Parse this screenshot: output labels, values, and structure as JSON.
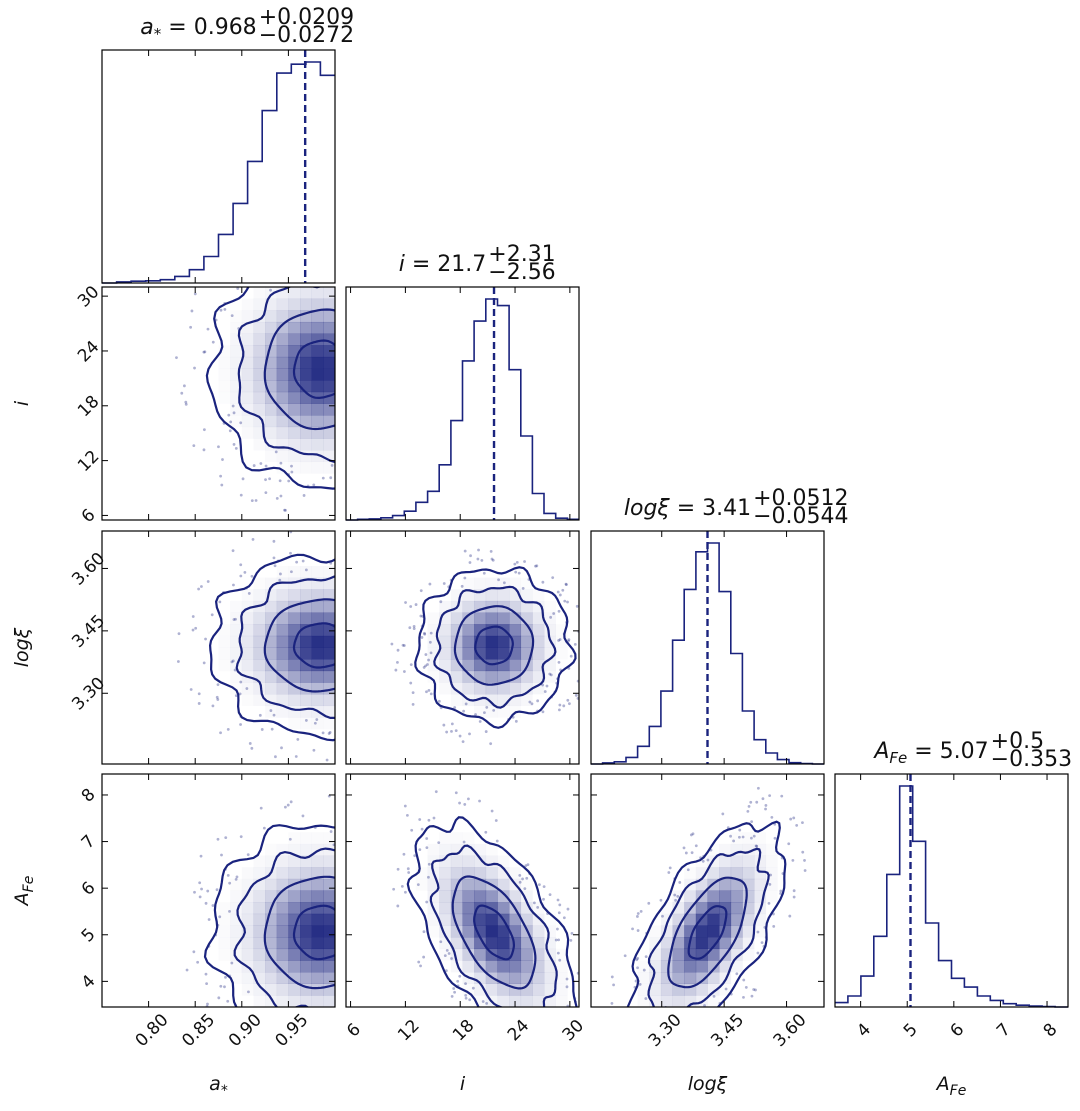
{
  "colors": {
    "line": "#1a237e",
    "density": "#1a237e",
    "frame": "#000000"
  },
  "chart_data": {
    "type": "corner",
    "parameters": [
      {
        "key": "a",
        "symbol": "a",
        "sub": "*",
        "xlabel": "a*",
        "ylabel": "",
        "median": 0.968,
        "plus": "+0.0209",
        "minus": "−0.0272",
        "title_value": "0.968",
        "range": [
          0.75,
          1.0
        ],
        "ticks": [
          0.8,
          0.85,
          0.9,
          0.95
        ],
        "tick_labels": [
          "0.80",
          "0.85",
          "0.90",
          "0.95"
        ],
        "hist": [
          0,
          0.005,
          0.008,
          0.01,
          0.015,
          0.03,
          0.06,
          0.12,
          0.22,
          0.36,
          0.55,
          0.78,
          0.95,
          0.99,
          1.0,
          0.94
        ],
        "hist_range": [
          0.75,
          1.0
        ]
      },
      {
        "key": "i",
        "symbol": "i",
        "sub": "",
        "xlabel": "i",
        "ylabel": "i",
        "median": 21.7,
        "plus": "+2.31",
        "minus": "−2.56",
        "title_value": "21.7",
        "range": [
          5.5,
          31
        ],
        "ticks": [
          6,
          12,
          18,
          24,
          30
        ],
        "tick_labels": [
          "6",
          "12",
          "18",
          "24",
          "30"
        ],
        "hist": [
          0,
          0.003,
          0.005,
          0.01,
          0.02,
          0.04,
          0.08,
          0.13,
          0.25,
          0.45,
          0.72,
          0.9,
          1.0,
          0.97,
          0.68,
          0.38,
          0.12,
          0.03,
          0.008,
          0.003
        ],
        "hist_range": [
          5.5,
          31
        ]
      },
      {
        "key": "logxi",
        "symbol": "logξ",
        "sub": "",
        "xlabel": "logξ",
        "ylabel": "logξ",
        "median": 3.41,
        "plus": "+0.0512",
        "minus": "−0.0544",
        "title_value": "3.41",
        "range": [
          3.13,
          3.69
        ],
        "ticks": [
          3.3,
          3.45,
          3.6
        ],
        "tick_labels": [
          "3.30",
          "3.45",
          "3.60"
        ],
        "hist": [
          0,
          0.005,
          0.01,
          0.03,
          0.08,
          0.17,
          0.33,
          0.56,
          0.79,
          0.96,
          1.0,
          0.78,
          0.5,
          0.24,
          0.11,
          0.05,
          0.02,
          0.006,
          0.002,
          0
        ],
        "hist_range": [
          3.13,
          3.69
        ]
      },
      {
        "key": "afe",
        "symbol": "A",
        "sub": "Fe",
        "xlabel": "AFe",
        "ylabel": "AFe",
        "median": 5.07,
        "plus": "+0.5",
        "minus": "−0.353",
        "title_value": "5.07",
        "range": [
          3.45,
          8.45
        ],
        "ticks": [
          4,
          5,
          6,
          7,
          8
        ],
        "tick_labels": [
          "4",
          "5",
          "6",
          "7",
          "8"
        ],
        "hist": [
          0.02,
          0.05,
          0.14,
          0.32,
          0.6,
          1.0,
          0.75,
          0.38,
          0.21,
          0.13,
          0.09,
          0.05,
          0.03,
          0.015,
          0.008,
          0.004,
          0.002,
          0
        ],
        "hist_range": [
          3.45,
          8.45
        ]
      }
    ],
    "pairs": [
      {
        "x": "a",
        "y": "i",
        "cx": 0.985,
        "cy": 22.0,
        "sx": 0.048,
        "sy": 5.2,
        "rho": 0.0
      },
      {
        "x": "a",
        "y": "logxi",
        "cx": 0.985,
        "cy": 3.415,
        "sx": 0.048,
        "sy": 0.088,
        "rho": 0.0
      },
      {
        "x": "i",
        "y": "logxi",
        "cx": 21.7,
        "cy": 3.415,
        "sx": 3.4,
        "sy": 0.075,
        "rho": 0.0
      },
      {
        "x": "a",
        "y": "afe",
        "cx": 0.985,
        "cy": 5.05,
        "sx": 0.048,
        "sy": 0.95,
        "rho": 0.0
      },
      {
        "x": "i",
        "y": "afe",
        "cx": 21.7,
        "cy": 5.05,
        "sx": 3.6,
        "sy": 0.95,
        "rho": -0.55
      },
      {
        "x": "logxi",
        "y": "afe",
        "cx": 3.41,
        "cy": 5.05,
        "sx": 0.075,
        "sy": 0.95,
        "rho": 0.62
      }
    ]
  }
}
